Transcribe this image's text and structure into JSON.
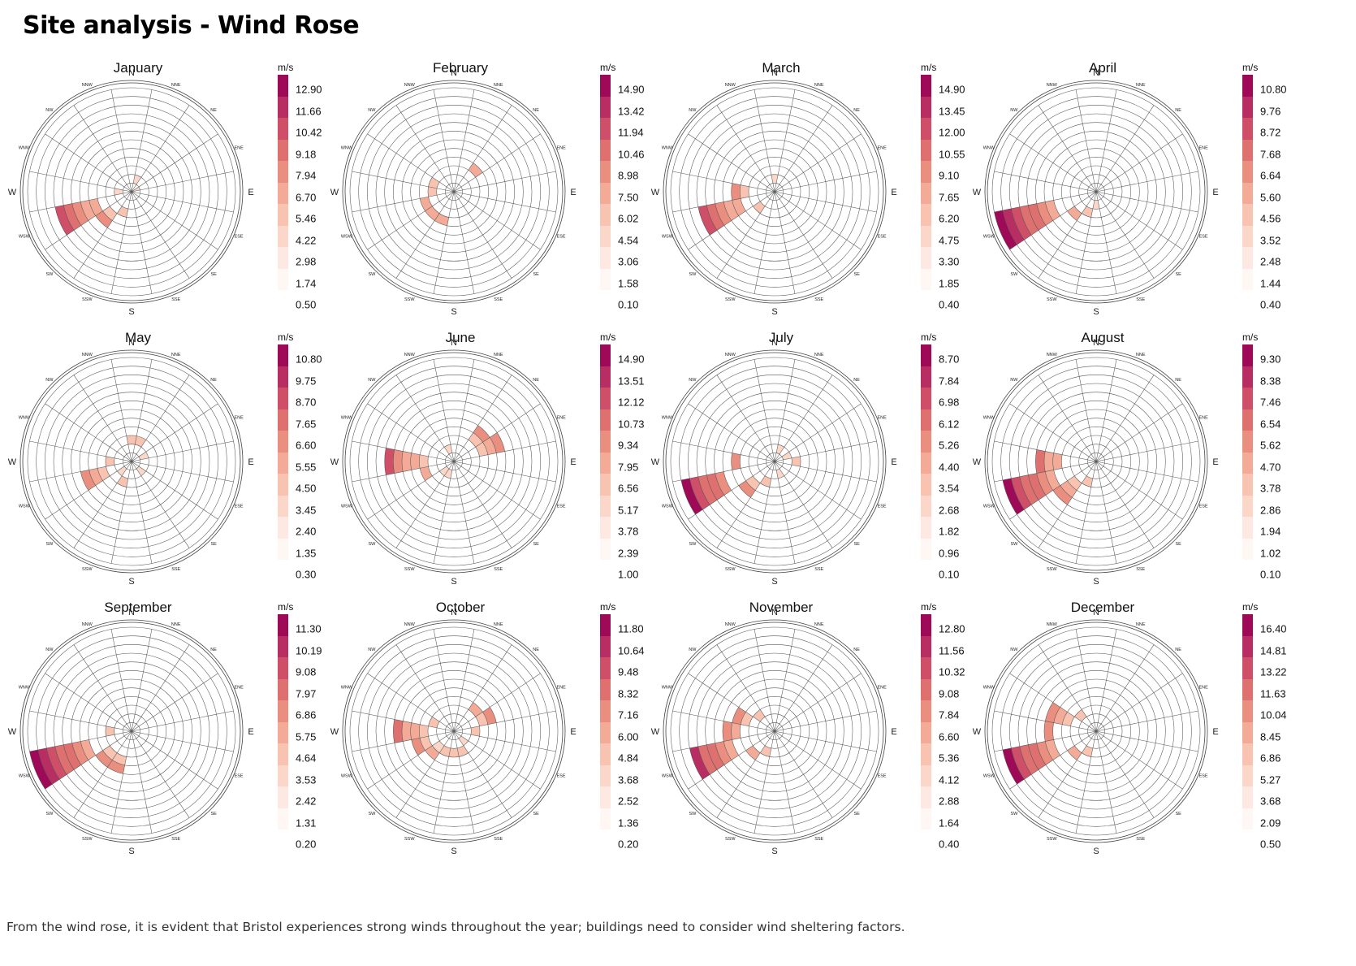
{
  "title": "Site analysis - Wind Rose",
  "caption": "From the wind rose, it is evident that Bristol experiences strong winds throughout the year; buildings need to consider wind sheltering factors.",
  "legend_unit": "m/s",
  "directions": [
    "N",
    "NNE",
    "NE",
    "ENE",
    "E",
    "ESE",
    "SE",
    "SSE",
    "S",
    "SSW",
    "SW",
    "WSW",
    "W",
    "WNW",
    "NW",
    "NNW"
  ],
  "palette": [
    "#fff7f3",
    "#fde9e2",
    "#fbd7c9",
    "#f8c3b0",
    "#f3ab97",
    "#ea8f80",
    "#de7070",
    "#cf4f68",
    "#b92e62",
    "#9e0a57"
  ],
  "chart_data": [
    {
      "type": "windrose",
      "title": "January",
      "unit": "m/s",
      "legend_ticks": [
        "12.90",
        "11.66",
        "10.42",
        "9.18",
        "7.94",
        "6.70",
        "5.46",
        "4.22",
        "2.98",
        "1.74",
        "0.50"
      ],
      "rings": [
        [
          1,
          1
        ],
        [
          1,
          2
        ],
        [
          1,
          1
        ],
        [
          0,
          1
        ],
        [
          0,
          0
        ],
        [
          0,
          0
        ],
        [
          0,
          0
        ],
        [
          0,
          0
        ],
        [
          1,
          1
        ],
        [
          2,
          3
        ],
        [
          3,
          5
        ],
        [
          4,
          9
        ],
        [
          1,
          2
        ],
        [
          1,
          1
        ],
        [
          1,
          1
        ],
        [
          1,
          1
        ]
      ]
    },
    {
      "type": "windrose",
      "title": "February",
      "unit": "m/s",
      "legend_ticks": [
        "14.90",
        "13.42",
        "11.94",
        "10.46",
        "8.98",
        "7.50",
        "6.02",
        "4.54",
        "3.06",
        "1.58",
        "0.10"
      ],
      "rings": [
        [
          2,
          2
        ],
        [
          3,
          3
        ],
        [
          3,
          4
        ],
        [
          2,
          2
        ],
        [
          0,
          0
        ],
        [
          0,
          0
        ],
        [
          0,
          0
        ],
        [
          0,
          0
        ],
        [
          1,
          1
        ],
        [
          3,
          4
        ],
        [
          3,
          4
        ],
        [
          3,
          4
        ],
        [
          2,
          3
        ],
        [
          2,
          3
        ],
        [
          2,
          2
        ],
        [
          2,
          2
        ]
      ]
    },
    {
      "type": "windrose",
      "title": "March",
      "unit": "m/s",
      "legend_ticks": [
        "14.90",
        "13.45",
        "12.00",
        "10.55",
        "9.10",
        "7.65",
        "6.20",
        "4.75",
        "3.30",
        "1.85",
        "0.40"
      ],
      "rings": [
        [
          1,
          2
        ],
        [
          1,
          1
        ],
        [
          0,
          0
        ],
        [
          0,
          0
        ],
        [
          0,
          0
        ],
        [
          0,
          0
        ],
        [
          0,
          0
        ],
        [
          0,
          0
        ],
        [
          1,
          1
        ],
        [
          2,
          2
        ],
        [
          2,
          3
        ],
        [
          4,
          9
        ],
        [
          3,
          5
        ],
        [
          2,
          2
        ],
        [
          1,
          1
        ],
        [
          1,
          1
        ]
      ]
    },
    {
      "type": "windrose",
      "title": "April",
      "unit": "m/s",
      "legend_ticks": [
        "10.80",
        "9.76",
        "8.72",
        "7.68",
        "6.64",
        "5.60",
        "4.56",
        "3.52",
        "2.48",
        "1.44",
        "0.40"
      ],
      "rings": [
        [
          1,
          1
        ],
        [
          1,
          1
        ],
        [
          1,
          1
        ],
        [
          0,
          0
        ],
        [
          0,
          0
        ],
        [
          0,
          0
        ],
        [
          0,
          0
        ],
        [
          1,
          1
        ],
        [
          1,
          2
        ],
        [
          2,
          3
        ],
        [
          3,
          4
        ],
        [
          5,
          12
        ],
        [
          3,
          3
        ],
        [
          1,
          1
        ],
        [
          1,
          1
        ],
        [
          1,
          1
        ]
      ]
    },
    {
      "type": "windrose",
      "title": "May",
      "unit": "m/s",
      "legend_ticks": [
        "10.80",
        "9.75",
        "8.70",
        "7.65",
        "6.60",
        "5.55",
        "4.50",
        "3.45",
        "2.40",
        "1.35",
        "0.30"
      ],
      "rings": [
        [
          2,
          3
        ],
        [
          2,
          3
        ],
        [
          2,
          2
        ],
        [
          1,
          2
        ],
        [
          1,
          1
        ],
        [
          1,
          1
        ],
        [
          1,
          2
        ],
        [
          2,
          2
        ],
        [
          3,
          3
        ],
        [
          2,
          3
        ],
        [
          1,
          2
        ],
        [
          3,
          6
        ],
        [
          2,
          3
        ],
        [
          2,
          2
        ],
        [
          2,
          2
        ],
        [
          2,
          2
        ]
      ]
    },
    {
      "type": "windrose",
      "title": "June",
      "unit": "m/s",
      "legend_ticks": [
        "14.90",
        "13.51",
        "12.12",
        "10.73",
        "9.34",
        "7.95",
        "6.56",
        "5.17",
        "3.78",
        "2.39",
        "1.00"
      ],
      "rings": [
        [
          1,
          1
        ],
        [
          2,
          2
        ],
        [
          3,
          5
        ],
        [
          3,
          6
        ],
        [
          1,
          1
        ],
        [
          1,
          1
        ],
        [
          1,
          1
        ],
        [
          1,
          1
        ],
        [
          1,
          1
        ],
        [
          1,
          2
        ],
        [
          1,
          2
        ],
        [
          3,
          4
        ],
        [
          3,
          8
        ],
        [
          2,
          2
        ],
        [
          2,
          2
        ],
        [
          1,
          2
        ]
      ]
    },
    {
      "type": "windrose",
      "title": "July",
      "unit": "m/s",
      "legend_ticks": [
        "8.70",
        "7.84",
        "6.98",
        "6.12",
        "5.26",
        "4.40",
        "3.54",
        "2.68",
        "1.82",
        "0.96",
        "0.10"
      ],
      "rings": [
        [
          1,
          1
        ],
        [
          1,
          2
        ],
        [
          1,
          1
        ],
        [
          1,
          2
        ],
        [
          2,
          3
        ],
        [
          1,
          1
        ],
        [
          1,
          1
        ],
        [
          1,
          2
        ],
        [
          2,
          2
        ],
        [
          2,
          3
        ],
        [
          3,
          5
        ],
        [
          6,
          11
        ],
        [
          4,
          5
        ],
        [
          1,
          1
        ],
        [
          1,
          1
        ],
        [
          1,
          1
        ]
      ]
    },
    {
      "type": "windrose",
      "title": "August",
      "unit": "m/s",
      "legend_ticks": [
        "9.30",
        "8.38",
        "7.46",
        "6.54",
        "5.62",
        "4.70",
        "3.78",
        "2.86",
        "1.94",
        "1.02",
        "0.10"
      ],
      "rings": [
        [
          1,
          1
        ],
        [
          1,
          1
        ],
        [
          1,
          1
        ],
        [
          2,
          2
        ],
        [
          1,
          1
        ],
        [
          1,
          1
        ],
        [
          1,
          1
        ],
        [
          1,
          1
        ],
        [
          1,
          1
        ],
        [
          2,
          3
        ],
        [
          3,
          6
        ],
        [
          5,
          11
        ],
        [
          4,
          7
        ],
        [
          1,
          1
        ],
        [
          1,
          1
        ],
        [
          1,
          1
        ]
      ]
    },
    {
      "type": "windrose",
      "title": "September",
      "unit": "m/s",
      "legend_ticks": [
        "11.30",
        "10.19",
        "9.08",
        "7.97",
        "6.86",
        "5.75",
        "4.64",
        "3.53",
        "2.42",
        "1.31",
        "0.20"
      ],
      "rings": [
        [
          1,
          1
        ],
        [
          1,
          1
        ],
        [
          1,
          1
        ],
        [
          0,
          0
        ],
        [
          0,
          0
        ],
        [
          0,
          0
        ],
        [
          0,
          0
        ],
        [
          1,
          1
        ],
        [
          2,
          2
        ],
        [
          3,
          5
        ],
        [
          3,
          5
        ],
        [
          5,
          12
        ],
        [
          2,
          3
        ],
        [
          1,
          1
        ],
        [
          1,
          1
        ],
        [
          1,
          1
        ]
      ]
    },
    {
      "type": "windrose",
      "title": "October",
      "unit": "m/s",
      "legend_ticks": [
        "11.80",
        "10.64",
        "9.48",
        "8.32",
        "7.16",
        "6.00",
        "4.84",
        "3.68",
        "2.52",
        "1.36",
        "0.20"
      ],
      "rings": [
        [
          2,
          2
        ],
        [
          3,
          3
        ],
        [
          3,
          4
        ],
        [
          3,
          5
        ],
        [
          2,
          3
        ],
        [
          1,
          1
        ],
        [
          1,
          2
        ],
        [
          2,
          3
        ],
        [
          2,
          3
        ],
        [
          2,
          3
        ],
        [
          2,
          4
        ],
        [
          3,
          5
        ],
        [
          3,
          7
        ],
        [
          2,
          3
        ],
        [
          2,
          2
        ],
        [
          2,
          2
        ]
      ]
    },
    {
      "type": "windrose",
      "title": "November",
      "unit": "m/s",
      "legend_ticks": [
        "12.80",
        "11.56",
        "10.32",
        "9.08",
        "7.84",
        "6.60",
        "5.36",
        "4.12",
        "2.88",
        "1.64",
        "0.40"
      ],
      "rings": [
        [
          1,
          1
        ],
        [
          1,
          1
        ],
        [
          0,
          0
        ],
        [
          0,
          0
        ],
        [
          0,
          0
        ],
        [
          0,
          0
        ],
        [
          0,
          0
        ],
        [
          1,
          1
        ],
        [
          2,
          2
        ],
        [
          2,
          3
        ],
        [
          3,
          4
        ],
        [
          5,
          10
        ],
        [
          4,
          6
        ],
        [
          3,
          5
        ],
        [
          2,
          3
        ],
        [
          1,
          1
        ]
      ]
    },
    {
      "type": "windrose",
      "title": "December",
      "unit": "m/s",
      "legend_ticks": [
        "16.40",
        "14.81",
        "13.22",
        "11.63",
        "10.04",
        "8.45",
        "6.86",
        "5.27",
        "3.68",
        "2.09",
        "0.50"
      ],
      "rings": [
        [
          1,
          1
        ],
        [
          1,
          1
        ],
        [
          0,
          0
        ],
        [
          0,
          0
        ],
        [
          0,
          0
        ],
        [
          0,
          0
        ],
        [
          0,
          0
        ],
        [
          1,
          1
        ],
        [
          1,
          1
        ],
        [
          2,
          3
        ],
        [
          3,
          4
        ],
        [
          5,
          11
        ],
        [
          5,
          6
        ],
        [
          3,
          6
        ],
        [
          2,
          3
        ],
        [
          1,
          1
        ]
      ]
    }
  ]
}
